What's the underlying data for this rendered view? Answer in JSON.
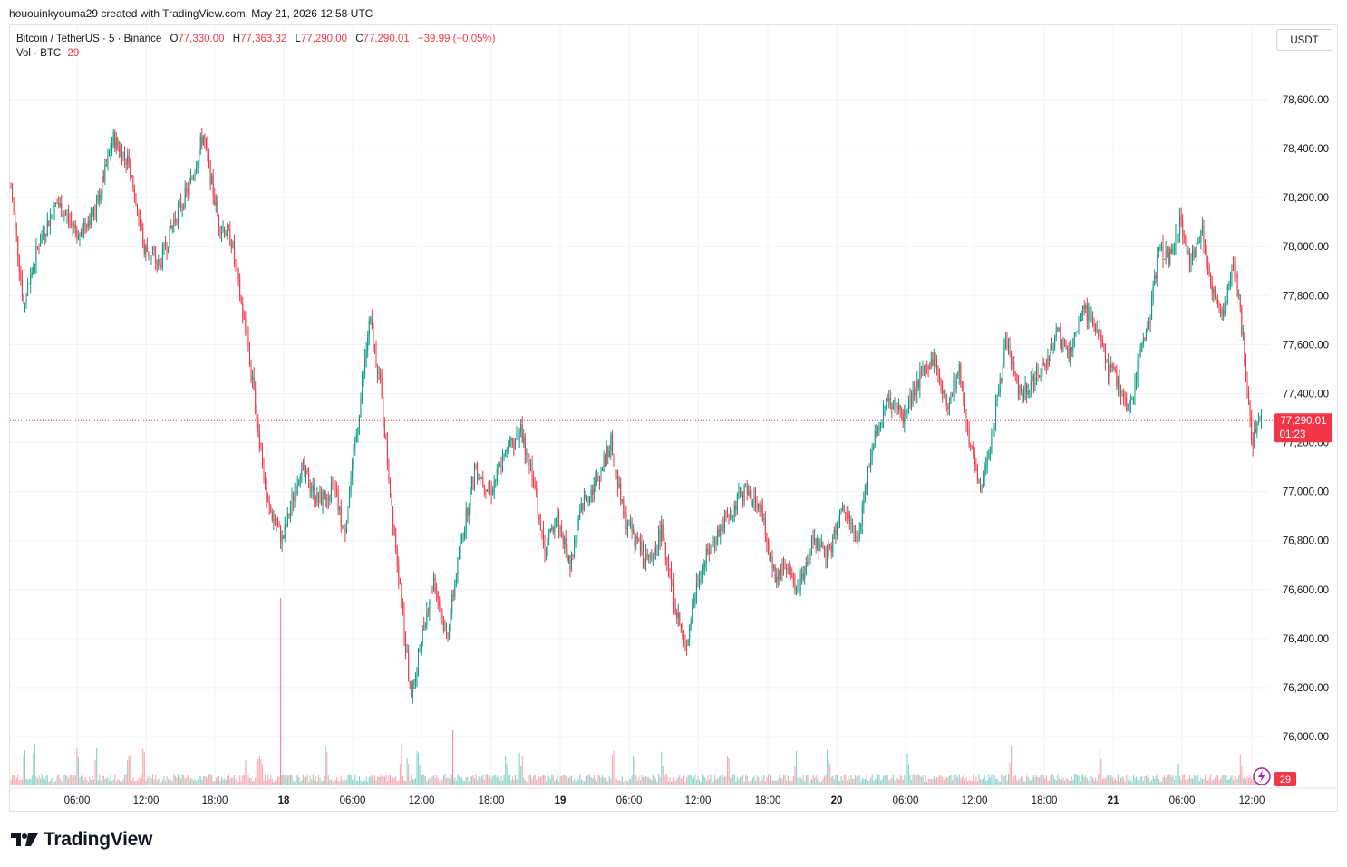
{
  "header": {
    "creator_line": "hououinkyouma29 created with TradingView.com, May 21, 2026 12:58 UTC"
  },
  "legend": {
    "symbol": "Bitcoin / TetherUS · 5 · Binance",
    "o_label": "O",
    "o_value": "77,330.00",
    "h_label": "H",
    "h_value": "77,363.32",
    "l_label": "L",
    "l_value": "77,290.00",
    "c_label": "C",
    "c_value": "77,290.01",
    "change": "−39.99 (−0.05%)",
    "vol_label": "Vol · BTC",
    "vol_value": "29"
  },
  "currency_button": "USDT",
  "price_tag": {
    "price": "77,290.01",
    "countdown": "01:23"
  },
  "volume_badge": "29",
  "brand": {
    "name": "TradingView",
    "icon": "tradingview-logo-icon"
  },
  "colors": {
    "up": "#089981",
    "down": "#f23645",
    "grid": "#f0f3fa",
    "text": "#131722"
  },
  "chart_data": {
    "type": "candlestick",
    "title": "Bitcoin / TetherUS · 5 · Binance",
    "y_axis_ticks": [
      "76,000.00",
      "76,200.00",
      "76,400.00",
      "76,600.00",
      "76,800.00",
      "77,000.00",
      "77,200.00",
      "77,400.00",
      "77,600.00",
      "77,800.00",
      "78,000.00",
      "78,200.00",
      "78,400.00",
      "78,600.00"
    ],
    "x_axis_ticks": [
      "06:00",
      "12:00",
      "18:00",
      "18",
      "06:00",
      "12:00",
      "18:00",
      "19",
      "06:00",
      "12:00",
      "18:00",
      "20",
      "06:00",
      "12:00",
      "18:00",
      "21",
      "06:00",
      "12:00"
    ],
    "ylim": [
      75880,
      78800
    ],
    "last_price": 77290.01,
    "price_path": [
      {
        "x": 0,
        "y": 78240
      },
      {
        "x": 10,
        "y": 77760
      },
      {
        "x": 22,
        "y": 78020
      },
      {
        "x": 36,
        "y": 78180
      },
      {
        "x": 52,
        "y": 78060
      },
      {
        "x": 66,
        "y": 78150
      },
      {
        "x": 80,
        "y": 78440
      },
      {
        "x": 92,
        "y": 78340
      },
      {
        "x": 104,
        "y": 78000
      },
      {
        "x": 116,
        "y": 77920
      },
      {
        "x": 128,
        "y": 78120
      },
      {
        "x": 140,
        "y": 78250
      },
      {
        "x": 150,
        "y": 78460
      },
      {
        "x": 162,
        "y": 78100
      },
      {
        "x": 172,
        "y": 78030
      },
      {
        "x": 184,
        "y": 77620
      },
      {
        "x": 192,
        "y": 77300
      },
      {
        "x": 200,
        "y": 76950
      },
      {
        "x": 212,
        "y": 76800
      },
      {
        "x": 226,
        "y": 77100
      },
      {
        "x": 240,
        "y": 76960
      },
      {
        "x": 252,
        "y": 77020
      },
      {
        "x": 260,
        "y": 76820
      },
      {
        "x": 270,
        "y": 77250
      },
      {
        "x": 280,
        "y": 77700
      },
      {
        "x": 288,
        "y": 77450
      },
      {
        "x": 296,
        "y": 77000
      },
      {
        "x": 304,
        "y": 76600
      },
      {
        "x": 312,
        "y": 76150
      },
      {
        "x": 320,
        "y": 76400
      },
      {
        "x": 330,
        "y": 76650
      },
      {
        "x": 340,
        "y": 76400
      },
      {
        "x": 350,
        "y": 76750
      },
      {
        "x": 362,
        "y": 77100
      },
      {
        "x": 374,
        "y": 77000
      },
      {
        "x": 386,
        "y": 77150
      },
      {
        "x": 398,
        "y": 77250
      },
      {
        "x": 408,
        "y": 77050
      },
      {
        "x": 416,
        "y": 76750
      },
      {
        "x": 426,
        "y": 76900
      },
      {
        "x": 436,
        "y": 76700
      },
      {
        "x": 446,
        "y": 76950
      },
      {
        "x": 458,
        "y": 77050
      },
      {
        "x": 468,
        "y": 77200
      },
      {
        "x": 478,
        "y": 76900
      },
      {
        "x": 488,
        "y": 76800
      },
      {
        "x": 498,
        "y": 76700
      },
      {
        "x": 508,
        "y": 76850
      },
      {
        "x": 518,
        "y": 76550
      },
      {
        "x": 526,
        "y": 76350
      },
      {
        "x": 536,
        "y": 76650
      },
      {
        "x": 548,
        "y": 76800
      },
      {
        "x": 560,
        "y": 76900
      },
      {
        "x": 572,
        "y": 77000
      },
      {
        "x": 584,
        "y": 76950
      },
      {
        "x": 596,
        "y": 76650
      },
      {
        "x": 604,
        "y": 76700
      },
      {
        "x": 614,
        "y": 76600
      },
      {
        "x": 626,
        "y": 76800
      },
      {
        "x": 638,
        "y": 76750
      },
      {
        "x": 650,
        "y": 76950
      },
      {
        "x": 660,
        "y": 76780
      },
      {
        "x": 672,
        "y": 77200
      },
      {
        "x": 684,
        "y": 77380
      },
      {
        "x": 696,
        "y": 77300
      },
      {
        "x": 708,
        "y": 77450
      },
      {
        "x": 720,
        "y": 77550
      },
      {
        "x": 730,
        "y": 77350
      },
      {
        "x": 740,
        "y": 77500
      },
      {
        "x": 748,
        "y": 77200
      },
      {
        "x": 756,
        "y": 77000
      },
      {
        "x": 766,
        "y": 77250
      },
      {
        "x": 776,
        "y": 77600
      },
      {
        "x": 788,
        "y": 77400
      },
      {
        "x": 796,
        "y": 77450
      },
      {
        "x": 806,
        "y": 77500
      },
      {
        "x": 816,
        "y": 77650
      },
      {
        "x": 826,
        "y": 77550
      },
      {
        "x": 836,
        "y": 77750
      },
      {
        "x": 846,
        "y": 77700
      },
      {
        "x": 856,
        "y": 77500
      },
      {
        "x": 864,
        "y": 77450
      },
      {
        "x": 872,
        "y": 77300
      },
      {
        "x": 880,
        "y": 77550
      },
      {
        "x": 888,
        "y": 77700
      },
      {
        "x": 896,
        "y": 78000
      },
      {
        "x": 904,
        "y": 77950
      },
      {
        "x": 912,
        "y": 78100
      },
      {
        "x": 920,
        "y": 77950
      },
      {
        "x": 930,
        "y": 78050
      },
      {
        "x": 938,
        "y": 77800
      },
      {
        "x": 946,
        "y": 77700
      },
      {
        "x": 954,
        "y": 77950
      },
      {
        "x": 962,
        "y": 77600
      },
      {
        "x": 968,
        "y": 77200
      },
      {
        "x": 976,
        "y": 77300
      }
    ],
    "volume_spikes": [
      10,
      18,
      52,
      66,
      92,
      104,
      184,
      192,
      194,
      196,
      246,
      304,
      310,
      318,
      386,
      398,
      470,
      486,
      508,
      560,
      612,
      638,
      700,
      780,
      850,
      910,
      960
    ]
  }
}
